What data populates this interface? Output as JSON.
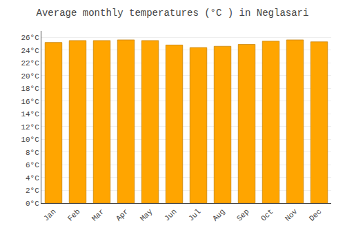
{
  "chart_data": {
    "type": "bar",
    "title": "Average monthly temperatures (°C ) in Neglasari",
    "categories": [
      "Jan",
      "Feb",
      "Mar",
      "Apr",
      "May",
      "Jun",
      "Jul",
      "Aug",
      "Sep",
      "Oct",
      "Nov",
      "Dec"
    ],
    "values": [
      25.2,
      25.5,
      25.5,
      25.6,
      25.5,
      24.8,
      24.4,
      24.6,
      24.9,
      25.4,
      25.6,
      25.3
    ],
    "color": "#FFA500",
    "ylim": [
      0,
      27
    ],
    "yticks": [
      {
        "value": 0,
        "label": "0°C"
      },
      {
        "value": 2,
        "label": "2°C"
      },
      {
        "value": 4,
        "label": "4°C"
      },
      {
        "value": 6,
        "label": "6°C"
      },
      {
        "value": 8,
        "label": "8°C"
      },
      {
        "value": 10,
        "label": "10°C"
      },
      {
        "value": 12,
        "label": "12°C"
      },
      {
        "value": 14,
        "label": "14°C"
      },
      {
        "value": 16,
        "label": "16°C"
      },
      {
        "value": 18,
        "label": "18°C"
      },
      {
        "value": 20,
        "label": "20°C"
      },
      {
        "value": 22,
        "label": "22°C"
      },
      {
        "value": 24,
        "label": "24°C"
      },
      {
        "value": 26,
        "label": "26°C"
      }
    ],
    "grid": true
  }
}
